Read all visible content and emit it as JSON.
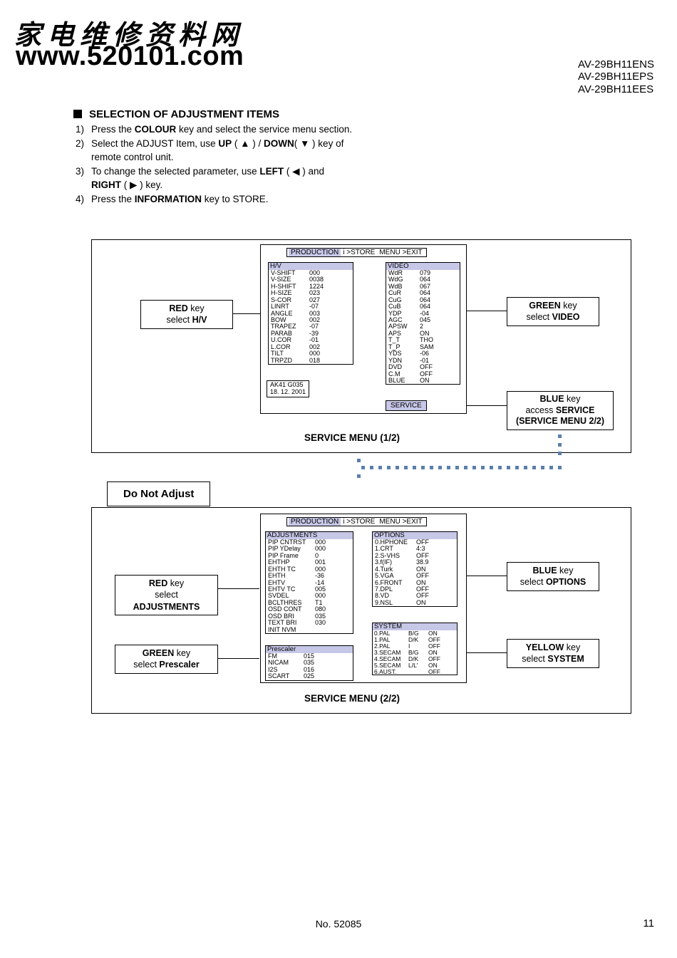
{
  "logo_cn": "家电维修资料网",
  "logo_url": "www.520101.com",
  "models": [
    "AV-29BH11ENS",
    "AV-29BH11EPS",
    "AV-29BH11EES"
  ],
  "section_title": "SELECTION OF ADJUSTMENT ITEMS",
  "steps": {
    "s1a": "Press the ",
    "s1b": "COLOUR",
    "s1c": " key and select the service menu section.",
    "s2a": "Select the ADJUST Item, use ",
    "s2b": "UP",
    "s2c": " ( ▲ ) / ",
    "s2d": "DOWN",
    "s2e": "( ▼ ) key of",
    "s2f": "remote control unit.",
    "s3a": "To change the selected parameter, use ",
    "s3b": "LEFT",
    "s3c": " ( ◀ ) and",
    "s3d": "RIGHT",
    "s3e": " ( ▶ ) key.",
    "s4a": "Press the ",
    "s4b": "INFORMATION",
    "s4c": " key to STORE."
  },
  "menu_header": {
    "a": "PRODUCTION",
    "b": "i >STORE",
    "c": "MENU >EXIT"
  },
  "menu1": {
    "hv_title": "H/V",
    "hv": [
      [
        "V-SHIFT",
        "000"
      ],
      [
        "V-SIZE",
        "0038"
      ],
      [
        "H-SHIFT",
        "1224"
      ],
      [
        "H-SIZE",
        "023"
      ],
      [
        "S-COR",
        "027"
      ],
      [
        "LINRT",
        "-07"
      ],
      [
        "ANGLE",
        "003"
      ],
      [
        "BOW",
        "002"
      ],
      [
        "TRAPEZ",
        "-07"
      ],
      [
        "PARAB",
        "-39"
      ],
      [
        "U.COR",
        "-01"
      ],
      [
        "L.COR",
        "002"
      ],
      [
        "TILT",
        "000"
      ],
      [
        "TRPZD",
        "018"
      ]
    ],
    "video_title": "VIDEO",
    "video": [
      [
        "WdR",
        "079"
      ],
      [
        "WdG",
        "064"
      ],
      [
        "WdB",
        "067"
      ],
      [
        "CuR",
        "064"
      ],
      [
        "CuG",
        "064"
      ],
      [
        "CuB",
        "064"
      ],
      [
        "YDP",
        "-04"
      ],
      [
        "AGC",
        "045"
      ],
      [
        "APSW",
        "2"
      ],
      [
        "APS",
        "ON"
      ],
      [
        "T_T",
        "THO"
      ],
      [
        "T_P",
        "SAM"
      ],
      [
        "YDS",
        "-06"
      ],
      [
        "YDN",
        "-01"
      ],
      [
        "DVD",
        "OFF"
      ],
      [
        "C.M",
        "OFF"
      ],
      [
        "BLUE",
        "ON"
      ]
    ],
    "info": [
      "AK41 G035",
      "18. 12. 2001"
    ],
    "service_label": "SERVICE",
    "caption": "SERVICE MENU (1/2)",
    "left1_a": "RED",
    "left1_b": " key",
    "left1_c": "select ",
    "left1_d": "H/V",
    "right1_a": "GREEN",
    "right1_b": " key",
    "right1_c": "select ",
    "right1_d": "VIDEO",
    "right2_a": "BLUE",
    "right2_b": " key",
    "right2_c": "access ",
    "right2_d": "SERVICE",
    "right2_e": "(SERVICE MENU 2/2)"
  },
  "do_not_adjust": "Do Not Adjust",
  "menu2": {
    "adj_title": "ADJUSTMENTS",
    "adj": [
      [
        "PIP CNTRST",
        "000"
      ],
      [
        "PIP YDelay",
        "000"
      ],
      [
        "PIP Frame",
        "0"
      ],
      [
        "EHTHP",
        "001"
      ],
      [
        "EHTH TC",
        "000"
      ],
      [
        "EHTH",
        "-36"
      ],
      [
        "EHTV",
        "-14"
      ],
      [
        "EHTV TC",
        "005"
      ],
      [
        "SVDEL",
        "000"
      ],
      [
        "BCLTHRES",
        "T1"
      ],
      [
        "OSD CONT",
        "080"
      ],
      [
        "OSD BRI",
        "035"
      ],
      [
        "TEXT BRI",
        "030"
      ],
      [
        "INIT NVM",
        ""
      ]
    ],
    "presc_title": "Prescaler",
    "presc": [
      [
        "FM",
        "015"
      ],
      [
        "NICAM",
        "035"
      ],
      [
        "I2S",
        "016"
      ],
      [
        "SCART",
        "025"
      ]
    ],
    "opt_title": "OPTIONS",
    "opt": [
      [
        "0.HPHONE",
        "OFF"
      ],
      [
        "1.CRT",
        "4:3"
      ],
      [
        "2.S-VHS",
        "OFF"
      ],
      [
        "3.f(IF)",
        "38.9"
      ],
      [
        "4.Turk",
        "ON"
      ],
      [
        "5.VGA",
        "OFF"
      ],
      [
        "6.FRONT",
        "ON"
      ],
      [
        "7.DPL",
        "OFF"
      ],
      [
        "8.VD",
        "OFF"
      ],
      [
        "9.NSL",
        "ON"
      ]
    ],
    "sys_title": "SYSTEM",
    "sys": [
      [
        "0.PAL",
        "B/G",
        "ON"
      ],
      [
        "1.PAL",
        "D/K",
        "OFF"
      ],
      [
        "2.PAL",
        "I",
        "OFF"
      ],
      [
        "3.SECAM",
        "B/G",
        "ON"
      ],
      [
        "4.SECAM",
        "D/K",
        "OFF"
      ],
      [
        "5.SECAM",
        "L/L'",
        "ON"
      ],
      [
        "6.AUST.",
        "",
        "OFF"
      ]
    ],
    "caption": "SERVICE MENU (2/2)",
    "left1_a": "RED",
    "left1_b": " key",
    "left1_c": "select ",
    "left1_d": "ADJUSTMENTS",
    "left2_a": "GREEN",
    "left2_b": " key",
    "left2_c": "select ",
    "left2_d": "Prescaler",
    "right1_a": "BLUE",
    "right1_b": " key",
    "right1_c": "select ",
    "right1_d": "OPTIONS",
    "right2_a": "YELLOW",
    "right2_b": " key",
    "right2_c": "select ",
    "right2_d": "SYSTEM"
  },
  "footer": {
    "docno": "No. 52085",
    "page": "11"
  }
}
